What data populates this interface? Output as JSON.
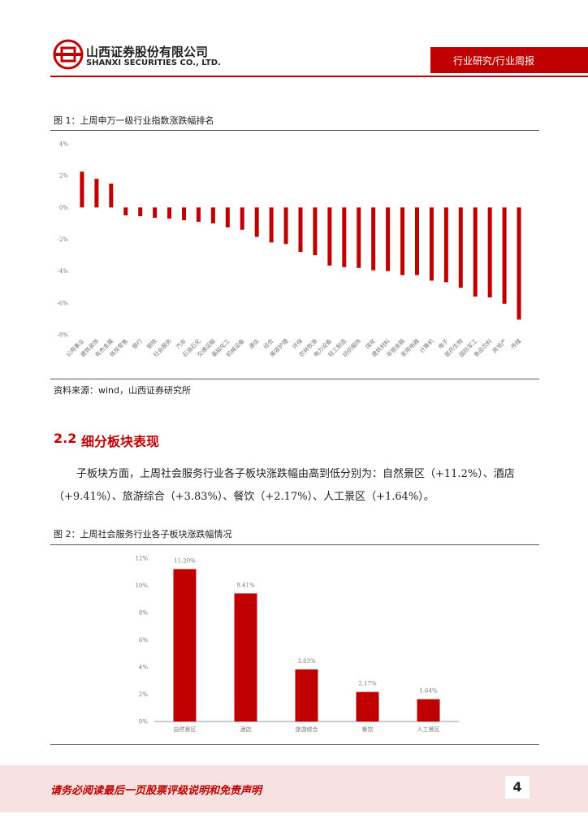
{
  "header": {
    "company": "山西证券股份有限公司",
    "company_en": "SHANXI SECURITIES CO., LTD.",
    "report_type": "行业研究/行业周报"
  },
  "section": {
    "number": "2.2",
    "title": "细分板块表现",
    "paragraph": "子板块方面，上周社会服务行业各子板块涨跌幅由高到低分别为：自然景区（+11.2%）、酒店（+9.41%）、旅游综合（+3.83%）、餐饮（+2.17%）、人工景区（+1.64%）。"
  },
  "footer": {
    "disclaimer": "请务必阅读最后一页股票评级说明和免责声明",
    "page": "4"
  },
  "chart_data": [
    {
      "type": "bar",
      "title": "图 1：上周申万一级行业指数涨跌幅排名",
      "source": "资料来源：wind，山西证券研究所",
      "color": "#c00000",
      "categories": [
        "公用事业",
        "建筑装饰",
        "有色金属",
        "商贸零售",
        "银行",
        "钢铁",
        "社会服务",
        "汽车",
        "石油石化",
        "交通运输",
        "基础化工",
        "机械设备",
        "通信",
        "综合",
        "美容护理",
        "环保",
        "农林牧渔",
        "电力设备",
        "轻工制造",
        "纺织服饰",
        "煤炭",
        "建筑材料",
        "非银金融",
        "家用电器",
        "计算机",
        "电子",
        "医药生物",
        "国防军工",
        "食品饮料",
        "房地产",
        "传媒"
      ],
      "values": [
        2.25,
        1.8,
        1.5,
        -0.5,
        -0.55,
        -0.65,
        -0.7,
        -0.8,
        -0.9,
        -1.0,
        -1.25,
        -1.4,
        -1.85,
        -2.2,
        -2.3,
        -2.8,
        -3.0,
        -3.65,
        -3.75,
        -3.8,
        -3.95,
        -4.0,
        -4.25,
        -4.25,
        -4.6,
        -4.7,
        -5.05,
        -5.6,
        -5.65,
        -6.05,
        -7.05
      ],
      "ylim": [
        -8,
        4
      ],
      "yticks": [
        {
          "value": -8,
          "label": "-8%"
        },
        {
          "value": -6,
          "label": "-6%"
        },
        {
          "value": -4,
          "label": "-4%"
        },
        {
          "value": -2,
          "label": "-2%"
        },
        {
          "value": 0,
          "label": "0%"
        },
        {
          "value": 2,
          "label": "2%"
        },
        {
          "value": 4,
          "label": "4%"
        }
      ]
    },
    {
      "type": "bar",
      "title": "图 2：上周社会服务行业各子板块涨跌幅情况",
      "color": "#c00000",
      "categories": [
        "自然景区",
        "酒店",
        "旅游综合",
        "餐饮",
        "人工景区"
      ],
      "values": [
        11.2,
        9.41,
        3.83,
        2.17,
        1.64
      ],
      "value_labels": [
        "11.20%",
        "9.41%",
        "3.83%",
        "2.17%",
        "1.64%"
      ],
      "ylim": [
        0,
        12
      ],
      "yticks": [
        {
          "value": 0,
          "label": "0%"
        },
        {
          "value": 2,
          "label": "2%"
        },
        {
          "value": 4,
          "label": "4%"
        },
        {
          "value": 6,
          "label": "6%"
        },
        {
          "value": 8,
          "label": "8%"
        },
        {
          "value": 10,
          "label": "10%"
        },
        {
          "value": 12,
          "label": "12%"
        }
      ]
    }
  ]
}
